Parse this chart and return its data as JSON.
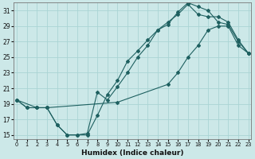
{
  "xlabel": "Humidex (Indice chaleur)",
  "bg_color": "#cce8e8",
  "line_color": "#1e6060",
  "grid_color": "#aad4d4",
  "xlim": [
    -0.3,
    23.3
  ],
  "ylim": [
    14.5,
    32.0
  ],
  "xticks": [
    0,
    1,
    2,
    3,
    4,
    5,
    6,
    7,
    8,
    9,
    10,
    11,
    12,
    13,
    14,
    15,
    16,
    17,
    18,
    19,
    20,
    21,
    22,
    23
  ],
  "yticks": [
    15,
    17,
    19,
    21,
    23,
    25,
    27,
    29,
    31
  ],
  "line1_x": [
    0,
    1,
    2,
    3,
    4,
    5,
    6,
    7,
    8,
    9,
    10,
    11,
    12,
    13,
    14,
    15,
    16,
    17,
    18,
    19,
    20,
    21,
    22,
    23
  ],
  "line1_y": [
    19.5,
    18.5,
    18.5,
    18.5,
    16.3,
    15.0,
    15.0,
    15.0,
    17.5,
    20.2,
    22.0,
    24.5,
    25.8,
    27.2,
    28.5,
    29.2,
    30.8,
    32.0,
    31.5,
    31.0,
    29.5,
    29.2,
    27.0,
    25.5
  ],
  "line2_x": [
    0,
    1,
    2,
    3,
    4,
    5,
    6,
    7,
    8,
    9,
    10,
    11,
    12,
    13,
    14,
    15,
    16,
    17,
    18,
    19,
    20,
    21,
    22,
    23
  ],
  "line2_y": [
    19.5,
    18.5,
    18.5,
    18.5,
    16.3,
    15.0,
    15.0,
    15.2,
    20.5,
    19.5,
    21.2,
    23.0,
    25.0,
    26.5,
    28.5,
    29.5,
    30.5,
    31.8,
    30.5,
    30.2,
    30.2,
    29.5,
    27.2,
    25.5
  ],
  "line3_x": [
    0,
    2,
    3,
    10,
    15,
    16,
    17,
    18,
    19,
    20,
    21,
    22,
    23
  ],
  "line3_y": [
    19.5,
    18.5,
    18.5,
    19.2,
    21.5,
    23.0,
    25.0,
    26.5,
    28.5,
    29.0,
    29.0,
    26.5,
    25.5
  ]
}
